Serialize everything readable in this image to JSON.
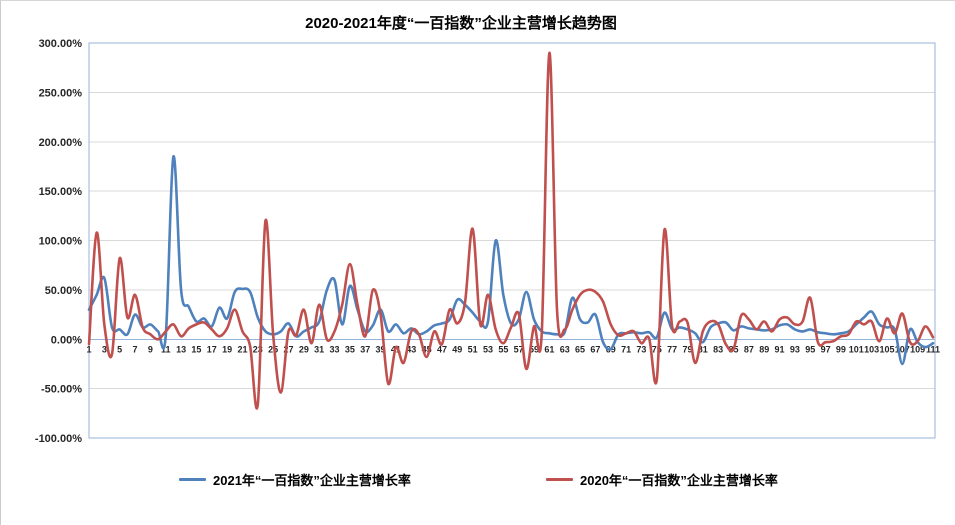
{
  "page": {
    "title": "2020-2021年度“一百指数”企业主营增长趋势图"
  },
  "chart_data": {
    "type": "line",
    "title": "2020-2021年度“一百指数”企业主营增长趋势图",
    "x": [
      1,
      2,
      3,
      4,
      5,
      6,
      7,
      8,
      9,
      10,
      11,
      12,
      13,
      14,
      15,
      16,
      17,
      18,
      19,
      20,
      21,
      22,
      23,
      24,
      25,
      26,
      27,
      28,
      29,
      30,
      31,
      32,
      33,
      34,
      35,
      36,
      37,
      38,
      39,
      40,
      41,
      42,
      43,
      44,
      45,
      46,
      47,
      48,
      49,
      50,
      51,
      52,
      53,
      54,
      55,
      56,
      57,
      58,
      59,
      60,
      61,
      62,
      63,
      64,
      65,
      66,
      67,
      68,
      69,
      70,
      71,
      72,
      73,
      74,
      75,
      76,
      77,
      78,
      79,
      80,
      81,
      82,
      83,
      84,
      85,
      86,
      87,
      88,
      89,
      90,
      91,
      92,
      93,
      94,
      95,
      96,
      97,
      98,
      99,
      100,
      101,
      102,
      103,
      104,
      105,
      106,
      107,
      108,
      109,
      110,
      111
    ],
    "x_tick_step": 2,
    "ylim_pct": [
      -100,
      300
    ],
    "y_ticks_pct": [
      300,
      250,
      200,
      150,
      100,
      50,
      0,
      -50,
      -100
    ],
    "y_tick_format": "0.00%",
    "grid": "horizontal",
    "legend_position": "bottom",
    "colors": {
      "gridline": "#D9D9D9",
      "plot_border": "#95B3D7",
      "zero_axis": "#95B3D7",
      "tick_label": "#262626"
    },
    "series": [
      {
        "name": "2021年“一百指数”企业主营增长率",
        "color": "#4F81BD",
        "values_pct": [
          30,
          45,
          62,
          12,
          10,
          5,
          25,
          12,
          15,
          8,
          3,
          185,
          50,
          33,
          18,
          21,
          13,
          32,
          21,
          48,
          51,
          48,
          22,
          8,
          5,
          8,
          16,
          3,
          8,
          12,
          18,
          50,
          60,
          15,
          54,
          30,
          8,
          14,
          30,
          8,
          15,
          6,
          11,
          5,
          8,
          14,
          16,
          20,
          40,
          35,
          27,
          18,
          18,
          100,
          45,
          16,
          20,
          48,
          20,
          8,
          6,
          5,
          7,
          42,
          20,
          17,
          25,
          -3,
          -10,
          5,
          6,
          7,
          6,
          7,
          2,
          27,
          10,
          12,
          10,
          6,
          -3,
          12,
          16,
          17,
          9,
          13,
          11,
          10,
          9,
          10,
          14,
          15,
          10,
          8,
          10,
          7,
          6,
          5,
          6,
          8,
          15,
          22,
          28,
          15,
          12,
          10,
          -25,
          10,
          -3,
          -8,
          -4
        ]
      },
      {
        "name": "2020年“一百指数”企业主营增长率",
        "color": "#C0504D",
        "values_pct": [
          -5,
          108,
          15,
          -15,
          82,
          22,
          45,
          12,
          5,
          0,
          8,
          15,
          3,
          11,
          15,
          17,
          10,
          3,
          11,
          30,
          8,
          -7,
          -66,
          120,
          5,
          -54,
          8,
          4,
          30,
          -4,
          35,
          0,
          8,
          35,
          76,
          35,
          3,
          50,
          25,
          -45,
          -8,
          -24,
          8,
          5,
          -18,
          8,
          -5,
          30,
          16,
          37,
          112,
          15,
          45,
          10,
          -4,
          12,
          26,
          -30,
          13,
          5,
          290,
          30,
          10,
          30,
          45,
          50,
          48,
          38,
          15,
          4,
          6,
          8,
          -4,
          1,
          -41,
          111,
          13,
          18,
          17,
          -24,
          8,
          18,
          15,
          -5,
          -10,
          24,
          20,
          10,
          18,
          8,
          20,
          22,
          15,
          18,
          42,
          -3,
          -3,
          -2,
          3,
          5,
          18,
          15,
          18,
          -2,
          21,
          6,
          26,
          -3,
          -2,
          13,
          2
        ]
      }
    ]
  }
}
